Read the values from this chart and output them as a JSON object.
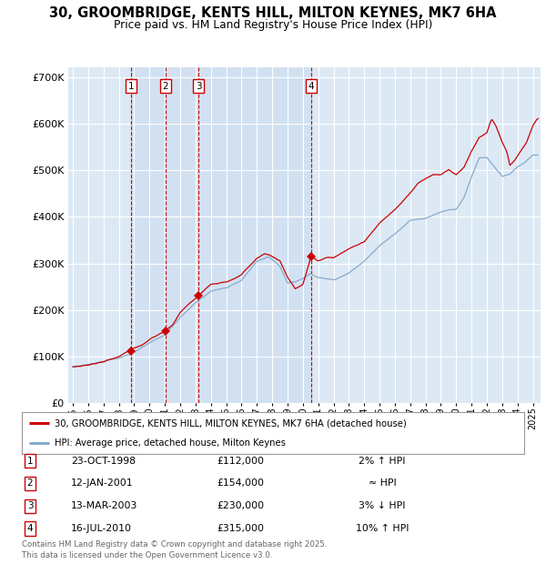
{
  "title_line1": "30, GROOMBRIDGE, KENTS HILL, MILTON KEYNES, MK7 6HA",
  "title_line2": "Price paid vs. HM Land Registry's House Price Index (HPI)",
  "ylim": [
    0,
    720000
  ],
  "yticks": [
    0,
    100000,
    200000,
    300000,
    400000,
    500000,
    600000,
    700000
  ],
  "xlim_start": 1994.7,
  "xlim_end": 2025.5,
  "background_color": "#dce9f5",
  "grid_color": "#ffffff",
  "red_line_color": "#cc0000",
  "blue_line_color": "#88aacc",
  "sale_line_color": "#cc0000",
  "sale_marker_color": "#cc0000",
  "sales": [
    {
      "num": 1,
      "date": "23-OCT-1998",
      "price": 112000,
      "year": 1998.81,
      "hpi_pct": "2% ↑ HPI"
    },
    {
      "num": 2,
      "date": "12-JAN-2001",
      "price": 154000,
      "year": 2001.04,
      "hpi_pct": "≈ HPI"
    },
    {
      "num": 3,
      "date": "13-MAR-2003",
      "price": 230000,
      "year": 2003.2,
      "hpi_pct": "3% ↓ HPI"
    },
    {
      "num": 4,
      "date": "16-JUL-2010",
      "price": 315000,
      "year": 2010.54,
      "hpi_pct": "10% ↑ HPI"
    }
  ],
  "legend_entries": [
    "30, GROOMBRIDGE, KENTS HILL, MILTON KEYNES, MK7 6HA (detached house)",
    "HPI: Average price, detached house, Milton Keynes"
  ],
  "footnote": "Contains HM Land Registry data © Crown copyright and database right 2025.\nThis data is licensed under the Open Government Licence v3.0."
}
